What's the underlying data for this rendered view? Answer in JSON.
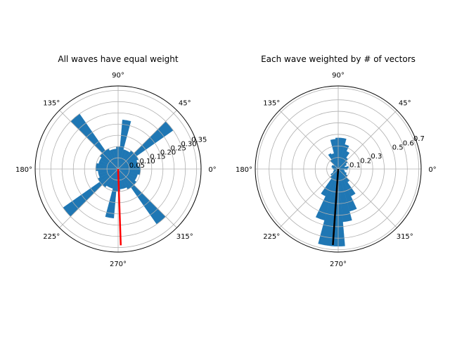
{
  "chart_data": [
    {
      "type": "polar-bar",
      "title": "All waves have equal weight",
      "angle_tick_labels": [
        "0°",
        "45°",
        "90°",
        "135°",
        "180°",
        "225°",
        "270°",
        "315°"
      ],
      "radial_tick_labels": [
        "0.05",
        "0.10",
        "0.15",
        "0.20",
        "0.25",
        "0.30",
        "0.35"
      ],
      "rlim": [
        0,
        0.37
      ],
      "grid": true,
      "bar_color": "#1f77b4",
      "bin_width_deg": 10,
      "bins_deg": [
        0,
        10,
        20,
        30,
        40,
        50,
        60,
        70,
        80,
        90,
        100,
        110,
        120,
        130,
        140,
        150,
        160,
        170,
        180,
        190,
        200,
        210,
        220,
        230,
        240,
        250,
        260,
        270,
        280,
        290,
        300,
        310,
        320,
        330,
        340,
        350
      ],
      "values": [
        0.1,
        0.09,
        0.09,
        0.1,
        0.3,
        0.1,
        0.09,
        0.09,
        0.22,
        0.1,
        0.09,
        0.09,
        0.1,
        0.3,
        0.1,
        0.09,
        0.09,
        0.1,
        0.1,
        0.09,
        0.09,
        0.1,
        0.3,
        0.1,
        0.09,
        0.09,
        0.22,
        0.1,
        0.09,
        0.09,
        0.1,
        0.3,
        0.1,
        0.09,
        0.09,
        0.1
      ],
      "mean_vector": {
        "angle_deg": 272,
        "length": 0.34,
        "color": "#ff0000"
      }
    },
    {
      "type": "polar-bar",
      "title": "Each wave weighted by # of vectors",
      "angle_tick_labels": [
        "0°",
        "45°",
        "90°",
        "135°",
        "180°",
        "225°",
        "270°",
        "315°"
      ],
      "radial_tick_labels": [
        "0.1",
        "0.2",
        "0.3",
        "0.5",
        "0.6",
        "0.7"
      ],
      "radial_tick_values": [
        0.1,
        0.2,
        0.3,
        0.5,
        0.6,
        0.7
      ],
      "rlim": [
        0,
        0.72
      ],
      "grid": true,
      "bar_color": "#1f77b4",
      "bin_width_deg": 10,
      "bins_deg": [
        0,
        10,
        20,
        30,
        40,
        50,
        60,
        70,
        80,
        90,
        100,
        110,
        120,
        130,
        140,
        150,
        160,
        170,
        180,
        190,
        200,
        210,
        220,
        230,
        240,
        250,
        260,
        270,
        280,
        290,
        300,
        310,
        320,
        330,
        340,
        350
      ],
      "values": [
        0.08,
        0.09,
        0.06,
        0.08,
        0.1,
        0.12,
        0.17,
        0.22,
        0.27,
        0.27,
        0.26,
        0.14,
        0.15,
        0.1,
        0.05,
        0.06,
        0.06,
        0.05,
        0.04,
        0.04,
        0.04,
        0.05,
        0.08,
        0.1,
        0.26,
        0.46,
        0.67,
        0.67,
        0.46,
        0.38,
        0.26,
        0.14,
        0.1,
        0.08,
        0.06,
        0.05
      ],
      "mean_vector": {
        "angle_deg": 266,
        "length": 0.66,
        "color": "#000000"
      }
    }
  ]
}
